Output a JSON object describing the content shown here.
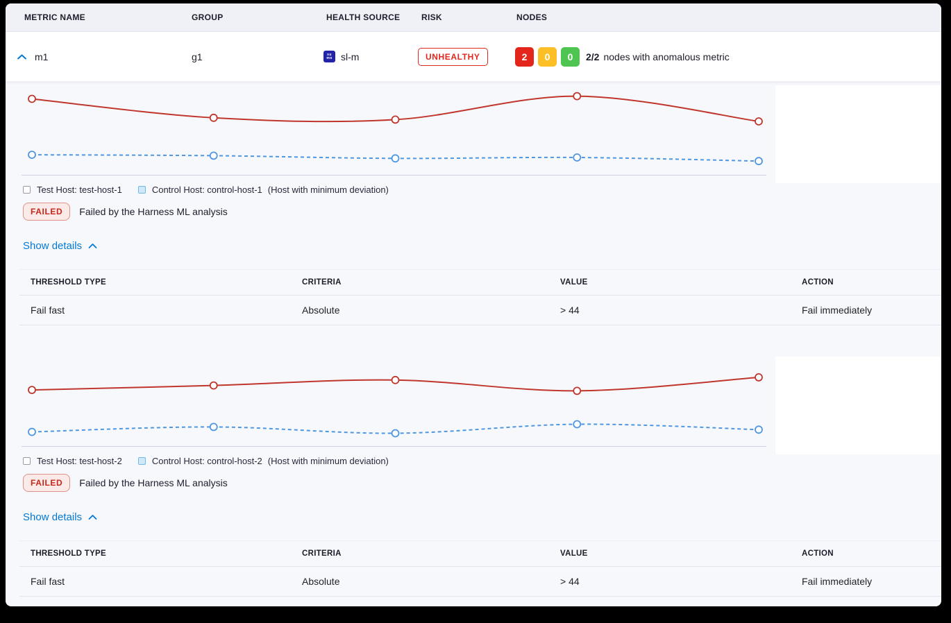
{
  "table_header": {
    "metric_name": "METRIC NAME",
    "group": "GROUP",
    "health_source": "HEALTH SOURCE",
    "risk": "RISK",
    "nodes": "NODES"
  },
  "metric_row": {
    "metric_name": "m1",
    "group": "g1",
    "health_source": {
      "icon": "sumologic-icon",
      "icon_line1": "su",
      "icon_line2": "mo",
      "label": "sl-m"
    },
    "risk_badge": "UNHEALTHY",
    "nodes": {
      "counts": [
        {
          "value": "2",
          "color": "#e3251b",
          "status": "unhealthy"
        },
        {
          "value": "0",
          "color": "#fcc026",
          "status": "observe"
        },
        {
          "value": "0",
          "color": "#4ec451",
          "status": "healthy"
        }
      ],
      "ratio": "2/2",
      "description": "nodes with anomalous metric"
    }
  },
  "sections": [
    {
      "legend": {
        "test": "Test Host: test-host-1",
        "control": "Control Host: control-host-1",
        "note": "(Host with minimum deviation)"
      },
      "status": {
        "badge": "FAILED",
        "message": "Failed by the Harness ML analysis"
      },
      "details_toggle": "Show details",
      "table": {
        "headers": [
          "THRESHOLD TYPE",
          "CRITERIA",
          "VALUE",
          "ACTION"
        ],
        "rows": [
          [
            "Fail fast",
            "Absolute",
            "> 44",
            "Fail immediately"
          ]
        ]
      }
    },
    {
      "legend": {
        "test": "Test Host: test-host-2",
        "control": "Control Host: control-host-2",
        "note": "(Host with minimum deviation)"
      },
      "status": {
        "badge": "FAILED",
        "message": "Failed by the Harness ML analysis"
      },
      "details_toggle": "Show details",
      "table": {
        "headers": [
          "THRESHOLD TYPE",
          "CRITERIA",
          "VALUE",
          "ACTION"
        ],
        "rows": [
          [
            "Fail fast",
            "Absolute",
            "> 44",
            "Fail immediately"
          ]
        ]
      }
    }
  ],
  "chart_data": [
    {
      "type": "line",
      "title": "",
      "x": [
        1,
        2,
        3,
        4,
        5
      ],
      "x_axis": {
        "tick_labels_visible": false
      },
      "y_axis": {
        "tick_labels_visible": false,
        "range_normalized": [
          0,
          1
        ]
      },
      "grid": false,
      "legend_position": "below",
      "series": [
        {
          "name": "Test Host: test-host-1",
          "color": "#c0362c",
          "style": "solid",
          "marker": "open-circle",
          "values_normalized": [
            0.85,
            0.64,
            0.62,
            0.88,
            0.6
          ]
        },
        {
          "name": "Control Host: control-host-1",
          "color": "#4e97e0",
          "style": "dashed",
          "marker": "open-circle",
          "values_normalized": [
            0.23,
            0.22,
            0.19,
            0.2,
            0.16
          ]
        }
      ]
    },
    {
      "type": "line",
      "title": "",
      "x": [
        1,
        2,
        3,
        4,
        5
      ],
      "x_axis": {
        "tick_labels_visible": false
      },
      "y_axis": {
        "tick_labels_visible": false,
        "range_normalized": [
          0,
          1
        ]
      },
      "grid": false,
      "legend_position": "below",
      "series": [
        {
          "name": "Test Host: test-host-2",
          "color": "#c0362c",
          "style": "solid",
          "marker": "open-circle",
          "values_normalized": [
            0.63,
            0.68,
            0.74,
            0.62,
            0.77
          ]
        },
        {
          "name": "Control Host: control-host-2",
          "color": "#4e97e0",
          "style": "dashed",
          "marker": "open-circle",
          "values_normalized": [
            0.165,
            0.22,
            0.15,
            0.25,
            0.19
          ]
        }
      ]
    }
  ],
  "colors": {
    "accent_blue": "#0278d5",
    "risk_red": "#e0271b",
    "failed_red": "#c9261a",
    "node_red": "#e3251b",
    "node_yellow": "#fcc026",
    "node_green": "#4ec451",
    "test_line": "#c0362c",
    "control_line": "#4e97e0"
  }
}
